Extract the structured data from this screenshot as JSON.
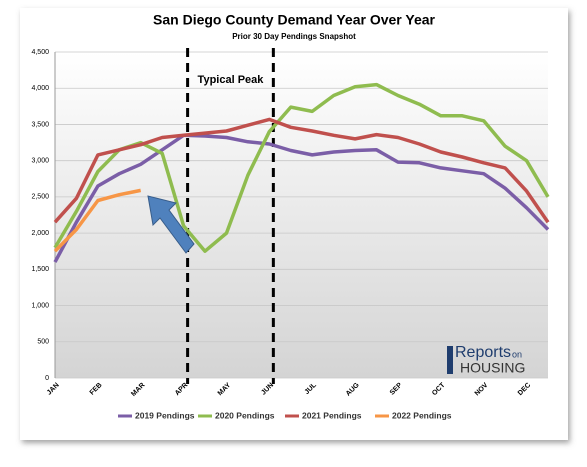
{
  "chart_data": {
    "type": "line",
    "title": "San Diego County Demand Year Over Year",
    "subtitle": "Prior 30 Day Pendings Snapshot",
    "annotation": "Typical Peak",
    "logo": {
      "reports": "Reports",
      "on": "on",
      "housing": "HOUSING"
    },
    "categories": [
      "JAN",
      null,
      "FEB",
      null,
      "MAR",
      null,
      "APR",
      null,
      "MAY",
      null,
      "JUN",
      null,
      "JUL",
      null,
      "AUG",
      null,
      "SEP",
      null,
      "OCT",
      null,
      "NOV",
      null,
      "DEC",
      null
    ],
    "ylim": [
      0,
      4500
    ],
    "yticks": [
      0,
      500,
      {
        "value": 1000,
        "label": "1,000"
      },
      {
        "value": 1500,
        "label": "1,500"
      },
      {
        "value": 2000,
        "label": "2,000"
      },
      {
        "value": 2500,
        "label": "2,500"
      },
      {
        "value": 3000,
        "label": "3,000"
      },
      {
        "value": 3500,
        "label": "3,500"
      },
      {
        "value": 4000,
        "label": "4,000"
      },
      {
        "value": 4500,
        "label": "4,500"
      }
    ],
    "grid": true,
    "series": [
      {
        "name": "2019 Pendings",
        "color": "#7b5ea7",
        "values": [
          1600,
          2150,
          2650,
          2820,
          2950,
          3150,
          3350,
          3340,
          3320,
          3260,
          3230,
          3140,
          3080,
          3120,
          3140,
          3150,
          2980,
          2970,
          2900,
          2860,
          2820,
          2620,
          2350,
          2050
        ]
      },
      {
        "name": "2020 Pendings",
        "color": "#8fbc4f",
        "values": [
          1800,
          2300,
          2850,
          3150,
          3250,
          3100,
          2100,
          1750,
          2000,
          2800,
          3400,
          3740,
          3680,
          3900,
          4020,
          4050,
          3900,
          3780,
          3620,
          3620,
          3550,
          3200,
          3000,
          2500
        ]
      },
      {
        "name": "2021 Pendings",
        "color": "#c0504d",
        "values": [
          2150,
          2480,
          3080,
          3150,
          3220,
          3320,
          3350,
          3380,
          3410,
          3490,
          3570,
          3460,
          3410,
          3350,
          3300,
          3360,
          3320,
          3230,
          3120,
          3050,
          2970,
          2900,
          2580,
          2150
        ]
      },
      {
        "name": "2022 Pendings",
        "color": "#f79646",
        "values": [
          1750,
          2050,
          2450,
          2530,
          2590,
          null,
          null,
          null,
          null,
          null,
          null,
          null,
          null,
          null,
          null,
          null,
          null,
          null,
          null,
          null,
          null,
          null,
          null,
          null
        ]
      }
    ]
  }
}
